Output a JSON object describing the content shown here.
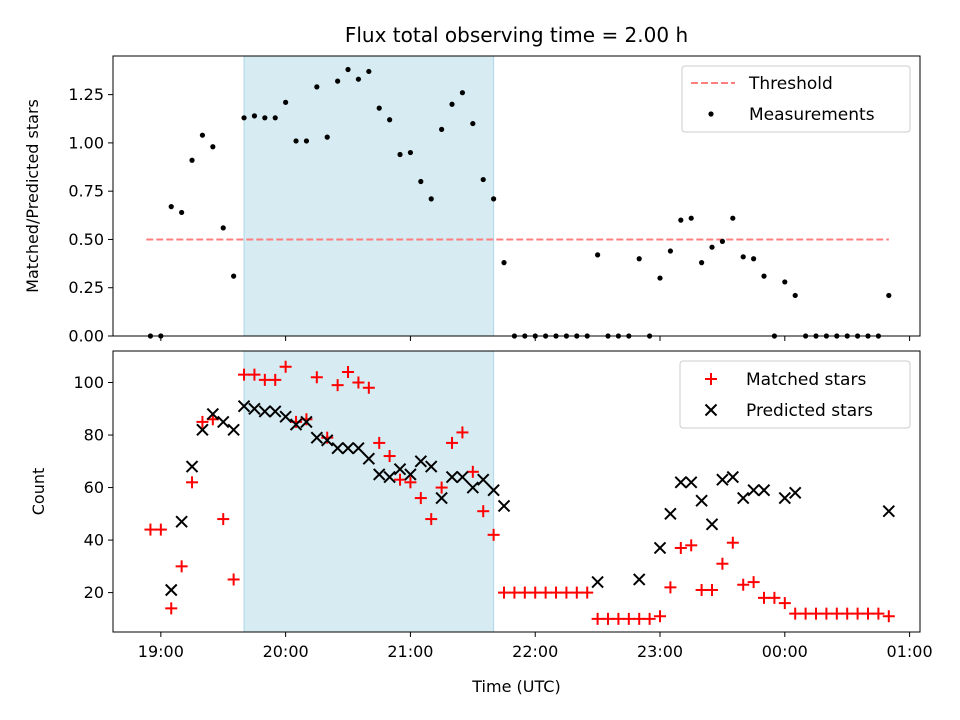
{
  "chart_data": [
    {
      "type": "scatter",
      "title": "Flux total observing time = 2.00 h",
      "xlabel": "",
      "ylabel": "Matched/Predicted stars",
      "xlim": [
        "18:37",
        "01:05"
      ],
      "ylim": [
        0,
        1.45
      ],
      "yticks": [
        "0.00",
        "0.25",
        "0.50",
        "0.75",
        "1.00",
        "1.25"
      ],
      "shaded_interval": [
        "19:40",
        "21:40"
      ],
      "legend": {
        "position": "top-right",
        "entries": [
          "Threshold",
          "Measurements"
        ]
      },
      "series": [
        {
          "name": "Threshold",
          "style": "dashed-line",
          "color": "#ff7f7f",
          "points": [
            [
              "18:53",
              0.5
            ],
            [
              "00:50",
              0.5
            ]
          ]
        },
        {
          "name": "Measurements",
          "style": "dot",
          "color": "#000000",
          "points": [
            [
              "18:55",
              0
            ],
            [
              "19:00",
              0
            ],
            [
              "19:05",
              0.67
            ],
            [
              "19:10",
              0.64
            ],
            [
              "19:15",
              0.91
            ],
            [
              "19:20",
              1.04
            ],
            [
              "19:25",
              0.98
            ],
            [
              "19:30",
              0.56
            ],
            [
              "19:35",
              0.31
            ],
            [
              "19:40",
              1.13
            ],
            [
              "19:45",
              1.14
            ],
            [
              "19:50",
              1.13
            ],
            [
              "19:55",
              1.13
            ],
            [
              "20:00",
              1.21
            ],
            [
              "20:05",
              1.01
            ],
            [
              "20:10",
              1.01
            ],
            [
              "20:15",
              1.29
            ],
            [
              "20:20",
              1.03
            ],
            [
              "20:25",
              1.32
            ],
            [
              "20:30",
              1.38
            ],
            [
              "20:35",
              1.33
            ],
            [
              "20:40",
              1.37
            ],
            [
              "20:45",
              1.18
            ],
            [
              "20:50",
              1.12
            ],
            [
              "20:55",
              0.94
            ],
            [
              "21:00",
              0.95
            ],
            [
              "21:05",
              0.8
            ],
            [
              "21:10",
              0.71
            ],
            [
              "21:15",
              1.07
            ],
            [
              "21:20",
              1.2
            ],
            [
              "21:25",
              1.26
            ],
            [
              "21:30",
              1.1
            ],
            [
              "21:35",
              0.81
            ],
            [
              "21:40",
              0.71
            ],
            [
              "21:45",
              0.38
            ],
            [
              "21:50",
              0
            ],
            [
              "21:55",
              0
            ],
            [
              "22:00",
              0
            ],
            [
              "22:05",
              0
            ],
            [
              "22:10",
              0
            ],
            [
              "22:15",
              0
            ],
            [
              "22:20",
              0
            ],
            [
              "22:25",
              0
            ],
            [
              "22:30",
              0.42
            ],
            [
              "22:35",
              0
            ],
            [
              "22:40",
              0
            ],
            [
              "22:45",
              0
            ],
            [
              "22:50",
              0.4
            ],
            [
              "22:55",
              0
            ],
            [
              "23:00",
              0.3
            ],
            [
              "23:05",
              0.44
            ],
            [
              "23:10",
              0.6
            ],
            [
              "23:15",
              0.61
            ],
            [
              "23:20",
              0.38
            ],
            [
              "23:25",
              0.46
            ],
            [
              "23:30",
              0.49
            ],
            [
              "23:35",
              0.61
            ],
            [
              "23:40",
              0.41
            ],
            [
              "23:45",
              0.4
            ],
            [
              "23:50",
              0.31
            ],
            [
              "23:55",
              0
            ],
            [
              "00:00",
              0.28
            ],
            [
              "00:05",
              0.21
            ],
            [
              "00:10",
              0
            ],
            [
              "00:15",
              0
            ],
            [
              "00:20",
              0
            ],
            [
              "00:25",
              0
            ],
            [
              "00:30",
              0
            ],
            [
              "00:35",
              0
            ],
            [
              "00:40",
              0
            ],
            [
              "00:45",
              0
            ],
            [
              "00:50",
              0.21
            ]
          ]
        }
      ]
    },
    {
      "type": "scatter",
      "title": "",
      "xlabel": "Time (UTC)",
      "ylabel": "Count",
      "xlim": [
        "18:37",
        "01:05"
      ],
      "ylim": [
        5,
        112
      ],
      "yticks": [
        "20",
        "40",
        "60",
        "80",
        "100"
      ],
      "xticks": [
        "19:00",
        "20:00",
        "21:00",
        "22:00",
        "23:00",
        "00:00",
        "01:00"
      ],
      "shaded_interval": [
        "19:40",
        "21:40"
      ],
      "legend": {
        "position": "top-right",
        "entries": [
          "Matched stars",
          "Predicted stars"
        ]
      },
      "series": [
        {
          "name": "Matched stars",
          "marker": "+",
          "color": "#ff0000",
          "points": [
            [
              "18:55",
              44
            ],
            [
              "19:00",
              44
            ],
            [
              "19:05",
              14
            ],
            [
              "19:10",
              30
            ],
            [
              "19:15",
              62
            ],
            [
              "19:20",
              85
            ],
            [
              "19:25",
              86
            ],
            [
              "19:30",
              48
            ],
            [
              "19:35",
              25
            ],
            [
              "19:40",
              103
            ],
            [
              "19:45",
              103
            ],
            [
              "19:50",
              101
            ],
            [
              "19:55",
              101
            ],
            [
              "20:00",
              106
            ],
            [
              "20:05",
              85
            ],
            [
              "20:10",
              86
            ],
            [
              "20:15",
              102
            ],
            [
              "20:20",
              79
            ],
            [
              "20:25",
              99
            ],
            [
              "20:30",
              104
            ],
            [
              "20:35",
              100
            ],
            [
              "20:40",
              98
            ],
            [
              "20:45",
              77
            ],
            [
              "20:50",
              72
            ],
            [
              "20:55",
              63
            ],
            [
              "21:00",
              62
            ],
            [
              "21:05",
              56
            ],
            [
              "21:10",
              48
            ],
            [
              "21:15",
              60
            ],
            [
              "21:20",
              77
            ],
            [
              "21:25",
              81
            ],
            [
              "21:30",
              66
            ],
            [
              "21:35",
              51
            ],
            [
              "21:40",
              42
            ],
            [
              "21:45",
              20
            ],
            [
              "21:50",
              20
            ],
            [
              "21:55",
              20
            ],
            [
              "22:00",
              20
            ],
            [
              "22:05",
              20
            ],
            [
              "22:10",
              20
            ],
            [
              "22:15",
              20
            ],
            [
              "22:20",
              20
            ],
            [
              "22:25",
              20
            ],
            [
              "22:30",
              10
            ],
            [
              "22:35",
              10
            ],
            [
              "22:40",
              10
            ],
            [
              "22:45",
              10
            ],
            [
              "22:50",
              10
            ],
            [
              "22:55",
              10
            ],
            [
              "23:00",
              11
            ],
            [
              "23:05",
              22
            ],
            [
              "23:10",
              37
            ],
            [
              "23:15",
              38
            ],
            [
              "23:20",
              21
            ],
            [
              "23:25",
              21
            ],
            [
              "23:30",
              31
            ],
            [
              "23:35",
              39
            ],
            [
              "23:40",
              23
            ],
            [
              "23:45",
              24
            ],
            [
              "23:50",
              18
            ],
            [
              "23:55",
              18
            ],
            [
              "00:00",
              16
            ],
            [
              "00:05",
              12
            ],
            [
              "00:10",
              12
            ],
            [
              "00:15",
              12
            ],
            [
              "00:20",
              12
            ],
            [
              "00:25",
              12
            ],
            [
              "00:30",
              12
            ],
            [
              "00:35",
              12
            ],
            [
              "00:40",
              12
            ],
            [
              "00:45",
              12
            ],
            [
              "00:50",
              11
            ]
          ]
        },
        {
          "name": "Predicted stars",
          "marker": "x",
          "color": "#000000",
          "points": [
            [
              "19:05",
              21
            ],
            [
              "19:10",
              47
            ],
            [
              "19:15",
              68
            ],
            [
              "19:20",
              82
            ],
            [
              "19:25",
              88
            ],
            [
              "19:30",
              85
            ],
            [
              "19:35",
              82
            ],
            [
              "19:40",
              91
            ],
            [
              "19:45",
              90
            ],
            [
              "19:50",
              89
            ],
            [
              "19:55",
              89
            ],
            [
              "20:00",
              87
            ],
            [
              "20:05",
              84
            ],
            [
              "20:10",
              85
            ],
            [
              "20:15",
              79
            ],
            [
              "20:20",
              78
            ],
            [
              "20:25",
              75
            ],
            [
              "20:30",
              75
            ],
            [
              "20:35",
              75
            ],
            [
              "20:40",
              71
            ],
            [
              "20:45",
              65
            ],
            [
              "20:50",
              64
            ],
            [
              "20:55",
              67
            ],
            [
              "21:00",
              65
            ],
            [
              "21:05",
              70
            ],
            [
              "21:10",
              68
            ],
            [
              "21:15",
              56
            ],
            [
              "21:20",
              64
            ],
            [
              "21:25",
              64
            ],
            [
              "21:30",
              60
            ],
            [
              "21:35",
              63
            ],
            [
              "21:40",
              59
            ],
            [
              "21:45",
              53
            ],
            [
              "22:30",
              24
            ],
            [
              "22:50",
              25
            ],
            [
              "23:00",
              37
            ],
            [
              "23:05",
              50
            ],
            [
              "23:10",
              62
            ],
            [
              "23:15",
              62
            ],
            [
              "23:20",
              55
            ],
            [
              "23:25",
              46
            ],
            [
              "23:30",
              63
            ],
            [
              "23:35",
              64
            ],
            [
              "23:40",
              56
            ],
            [
              "23:45",
              59
            ],
            [
              "23:50",
              59
            ],
            [
              "00:00",
              56
            ],
            [
              "00:05",
              58
            ],
            [
              "00:50",
              51
            ]
          ]
        }
      ]
    }
  ]
}
